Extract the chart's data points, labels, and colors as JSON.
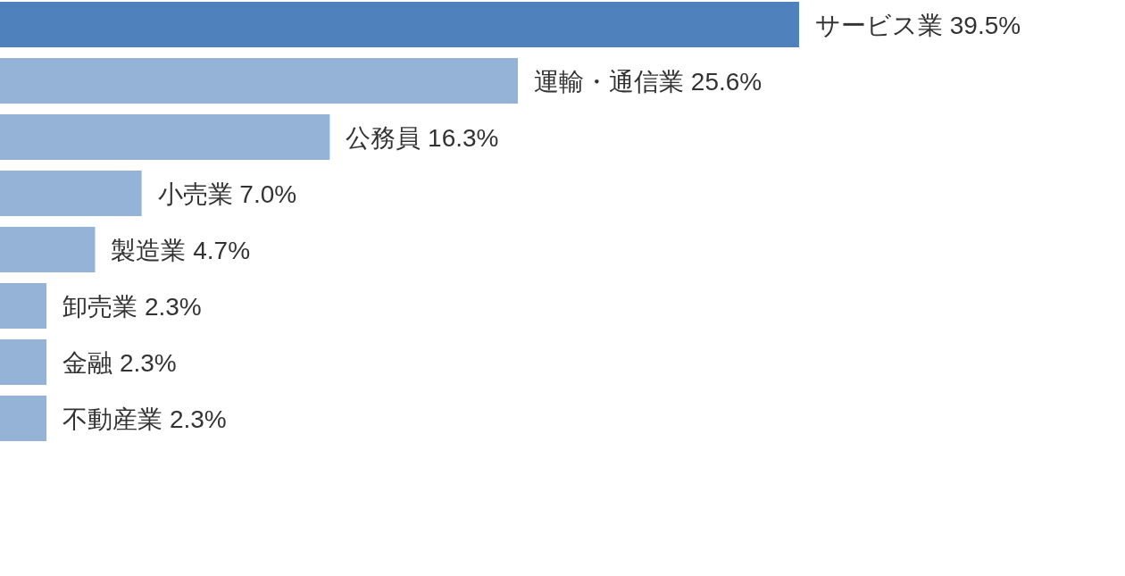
{
  "chart_data": {
    "type": "bar",
    "orientation": "horizontal",
    "categories": [
      null,
      null,
      null,
      null,
      null,
      null,
      null,
      null
    ],
    "values": [
      39.5,
      25.6,
      16.3,
      7.0,
      4.7,
      2.3,
      2.3,
      2.3
    ],
    "value_labels": [
      "サービス業 39.5%",
      "運輸・通信業 25.6%",
      "公務員 16.3%",
      "小売業 7.0%",
      "製造業 4.7%",
      "卸売業 2.3%",
      "金融 2.3%",
      "不動産業 2.3%"
    ],
    "colors": [
      "#4f81bd",
      "#95b3d7",
      "#95b3d7",
      "#95b3d7",
      "#95b3d7",
      "#95b3d7",
      "#95b3d7",
      "#95b3d7"
    ]
  }
}
